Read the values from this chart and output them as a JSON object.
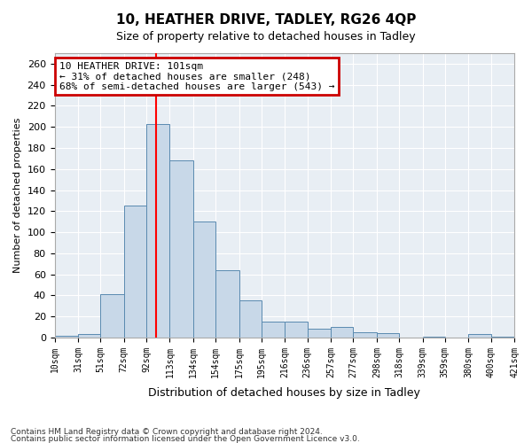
{
  "title_line1": "10, HEATHER DRIVE, TADLEY, RG26 4QP",
  "title_line2": "Size of property relative to detached houses in Tadley",
  "xlabel": "Distribution of detached houses by size in Tadley",
  "ylabel": "Number of detached properties",
  "footnote1": "Contains HM Land Registry data © Crown copyright and database right 2024.",
  "footnote2": "Contains public sector information licensed under the Open Government Licence v3.0.",
  "annotation_title": "10 HEATHER DRIVE: 101sqm",
  "annotation_line2": "← 31% of detached houses are smaller (248)",
  "annotation_line3": "68% of semi-detached houses are larger (543) →",
  "property_sqm": 101,
  "bar_edges": [
    10,
    31,
    51,
    72,
    92,
    113,
    134,
    154,
    175,
    195,
    216,
    236,
    257,
    277,
    298,
    318,
    339,
    359,
    380,
    400,
    421
  ],
  "bar_heights": [
    2,
    3,
    41,
    125,
    203,
    168,
    110,
    64,
    35,
    15,
    15,
    8,
    10,
    5,
    4,
    0,
    1,
    0,
    3,
    1
  ],
  "bar_color": "#c8d8e8",
  "bar_edge_color": "#5a8ab0",
  "red_line_x": 101,
  "annotation_box_color": "#cc0000",
  "background_color": "#e8eef4",
  "ylim": [
    0,
    270
  ],
  "yticks": [
    0,
    20,
    40,
    60,
    80,
    100,
    120,
    140,
    160,
    180,
    200,
    220,
    240,
    260
  ],
  "tick_labels": [
    "10sqm",
    "31sqm",
    "51sqm",
    "72sqm",
    "92sqm",
    "113sqm",
    "134sqm",
    "154sqm",
    "175sqm",
    "195sqm",
    "216sqm",
    "236sqm",
    "257sqm",
    "277sqm",
    "298sqm",
    "318sqm",
    "339sqm",
    "359sqm",
    "380sqm",
    "400sqm",
    "421sqm"
  ]
}
